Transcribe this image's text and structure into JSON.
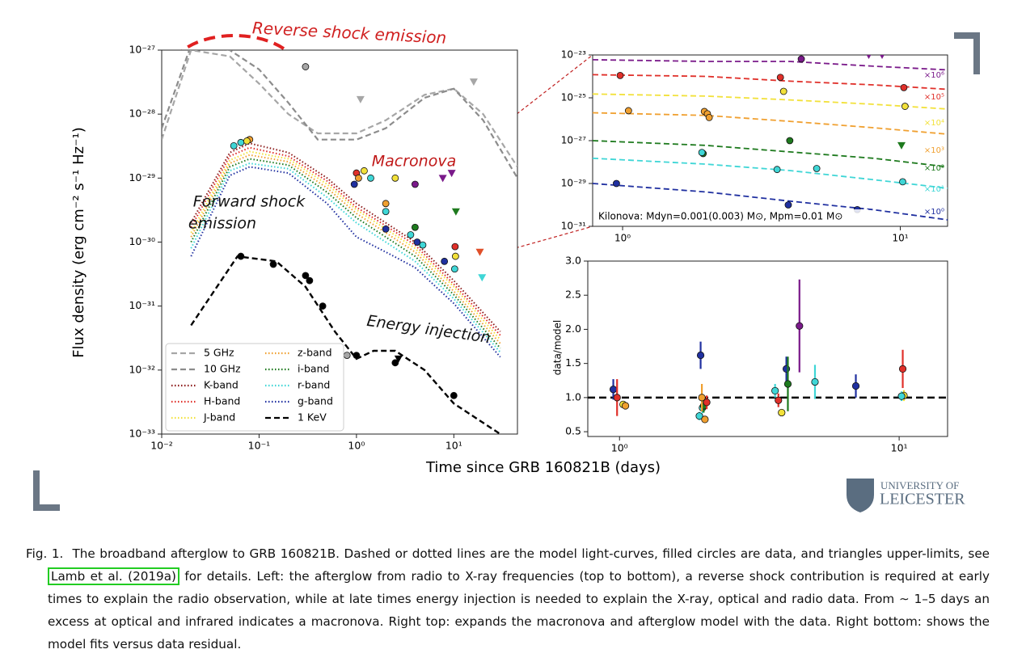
{
  "chart_data": [
    {
      "type": "line",
      "xscale": "log",
      "yscale": "log",
      "xlabel": "Time since GRB 160821B (days)",
      "ylabel": "Flux density (erg cm⁻² s⁻¹ Hz⁻¹)",
      "xlim": [
        0.01,
        45
      ],
      "ylim": [
        1e-33,
        1e-27
      ],
      "xticks": [
        {
          "value": 0.01,
          "label": "10⁻²"
        },
        {
          "value": 0.1,
          "label": "10⁻¹"
        },
        {
          "value": 1,
          "label": "10⁰"
        },
        {
          "value": 10,
          "label": "10¹"
        }
      ],
      "yticks": [
        {
          "value": 1e-33,
          "label": "10⁻³³"
        },
        {
          "value": 1e-32,
          "label": "10⁻³²"
        },
        {
          "value": 1e-31,
          "label": "10⁻³¹"
        },
        {
          "value": 1e-30,
          "label": "10⁻³⁰"
        },
        {
          "value": 1e-29,
          "label": "10⁻²⁹"
        },
        {
          "value": 1e-28,
          "label": "10⁻²⁸"
        },
        {
          "value": 1e-27,
          "label": "10⁻²⁷"
        }
      ],
      "legend": "lower left",
      "series": [
        {
          "name": "5 GHz",
          "color": "#a6a6a6",
          "style": "dashed",
          "x": [
            0.01,
            0.02,
            0.05,
            0.1,
            0.2,
            0.4,
            1,
            2,
            5,
            10,
            20,
            45
          ],
          "values": [
            4e-29,
            1e-27,
            8e-28,
            3e-28,
            1e-28,
            5e-29,
            5e-29,
            8e-29,
            2e-28,
            2.5e-28,
            1e-28,
            1.5e-29
          ]
        },
        {
          "name": "10 GHz",
          "color": "#8c8c8c",
          "style": "dashed",
          "x": [
            0.01,
            0.02,
            0.05,
            0.1,
            0.2,
            0.4,
            1,
            2,
            5,
            10,
            20,
            45
          ],
          "values": [
            6e-29,
            1.2e-27,
            1e-27,
            5e-28,
            1.5e-28,
            4e-29,
            4e-29,
            6e-29,
            1.8e-28,
            2.5e-28,
            8e-29,
            1e-29
          ]
        },
        {
          "name": "K-band",
          "color": "#8b1a1a",
          "style": "dotted",
          "x": [
            0.02,
            0.05,
            0.08,
            0.2,
            0.5,
            1,
            2,
            4,
            10,
            30
          ],
          "values": [
            2e-30,
            2.5e-29,
            3.5e-29,
            2.5e-29,
            1e-29,
            4e-30,
            2e-30,
            1e-30,
            2.5e-31,
            4e-32
          ]
        },
        {
          "name": "H-band",
          "color": "#e0302a",
          "style": "dotted",
          "x": [
            0.02,
            0.05,
            0.08,
            0.2,
            0.5,
            1,
            2,
            4,
            10,
            30
          ],
          "values": [
            1.7e-30,
            2.2e-29,
            3e-29,
            2.2e-29,
            9e-30,
            3.5e-30,
            1.8e-30,
            9e-31,
            2.2e-31,
            3.5e-32
          ]
        },
        {
          "name": "J-band",
          "color": "#f2e13a",
          "style": "dotted",
          "x": [
            0.02,
            0.05,
            0.08,
            0.2,
            0.5,
            1,
            2,
            4,
            10,
            30
          ],
          "values": [
            1.4e-30,
            1.9e-29,
            2.6e-29,
            2e-29,
            8e-30,
            3.2e-30,
            1.6e-30,
            8e-31,
            2e-31,
            3e-32
          ]
        },
        {
          "name": "z-band",
          "color": "#f0a030",
          "style": "dotted",
          "x": [
            0.02,
            0.05,
            0.08,
            0.2,
            0.5,
            1,
            2,
            4,
            10,
            30
          ],
          "values": [
            1.2e-30,
            1.7e-29,
            2.3e-29,
            1.8e-29,
            7e-30,
            2.8e-30,
            1.4e-30,
            7e-31,
            1.7e-31,
            2.6e-32
          ]
        },
        {
          "name": "i-band",
          "color": "#1e7a1e",
          "style": "dotted",
          "x": [
            0.02,
            0.05,
            0.08,
            0.2,
            0.5,
            1,
            2,
            4,
            10,
            30
          ],
          "values": [
            1e-30,
            1.5e-29,
            2e-29,
            1.6e-29,
            6e-30,
            2.4e-30,
            1.2e-30,
            6e-31,
            1.5e-31,
            2.2e-32
          ]
        },
        {
          "name": "r-band",
          "color": "#3fd6d6",
          "style": "dotted",
          "x": [
            0.02,
            0.05,
            0.08,
            0.2,
            0.5,
            1,
            2,
            4,
            10,
            30
          ],
          "values": [
            8e-31,
            1.3e-29,
            1.7e-29,
            1.4e-29,
            5e-30,
            2e-30,
            1e-30,
            5e-31,
            1.3e-31,
            1.9e-32
          ]
        },
        {
          "name": "g-band",
          "color": "#2030a0",
          "style": "dotted",
          "x": [
            0.02,
            0.05,
            0.08,
            0.2,
            0.5,
            1,
            2,
            4,
            10,
            30
          ],
          "values": [
            6e-31,
            1.1e-29,
            1.5e-29,
            1.2e-29,
            4e-30,
            1.2e-30,
            7e-31,
            4e-31,
            1.1e-31,
            1.6e-32
          ]
        },
        {
          "name": "1 KeV",
          "color": "#000000",
          "style": "dashed",
          "x": [
            0.02,
            0.06,
            0.15,
            0.3,
            0.6,
            1,
            1.5,
            2.5,
            5,
            10,
            30
          ],
          "values": [
            5e-32,
            6e-31,
            5e-31,
            2e-31,
            4e-32,
            1.5e-32,
            2e-32,
            2e-32,
            1e-32,
            3e-33,
            1e-33
          ]
        }
      ],
      "points": {
        "x": [
          0.055,
          0.065,
          0.08,
          0.075,
          1.0,
          1.05,
          0.95,
          1.2,
          1.4,
          2,
          2,
          2,
          2.5,
          4,
          4,
          3.6,
          4.2,
          4.8,
          8,
          10.3,
          10.4,
          10.2,
          0.065,
          0.14,
          0.3,
          0.33,
          0.45,
          1.0,
          2.5,
          10,
          0.3,
          0.8
        ],
        "values": [
          3.2e-29,
          3.6e-29,
          4e-29,
          3.8e-29,
          1.2e-29,
          1e-29,
          8e-30,
          1.3e-29,
          1e-29,
          4e-30,
          1.6e-30,
          3e-30,
          1e-29,
          8e-30,
          1.7e-30,
          1.3e-30,
          1e-30,
          9e-31,
          5e-31,
          8.5e-31,
          6e-31,
          3.8e-31,
          6e-31,
          4.5e-31,
          3e-31,
          2.5e-31,
          1e-31,
          1.7e-32,
          1.3e-32,
          4e-33,
          5.5e-28,
          1.7e-32
        ],
        "colors": [
          "#3fd6d6",
          "#3fd6d6",
          "#f0a030",
          "#f2e13a",
          "#e0302a",
          "#f0a030",
          "#2030a0",
          "#f2e13a",
          "#3fd6d6",
          "#f0a030",
          "#2030a0",
          "#3fd6d6",
          "#f2e13a",
          "#7a1a8a",
          "#1e7a1e",
          "#3fd6d6",
          "#2030a0",
          "#3fd6d6",
          "#2030a0",
          "#e0302a",
          "#f2e13a",
          "#3fd6d6",
          "#000000",
          "#000000",
          "#000000",
          "#000000",
          "#000000",
          "#000000",
          "#000000",
          "#000000",
          "#a6a6a6",
          "#a6a6a6"
        ]
      },
      "upper_limits": {
        "x": [
          1.1,
          16,
          7.7,
          9.5,
          10.5,
          18.5,
          19.5,
          2.7
        ],
        "values": [
          1.7e-28,
          3.2e-28,
          1e-29,
          1.2e-29,
          3e-30,
          7e-31,
          2.8e-31,
          1.5e-32
        ],
        "colors": [
          "#a6a6a6",
          "#a6a6a6",
          "#7a1a8a",
          "#7a1a8a",
          "#1e7a1e",
          "#e0502a",
          "#3fd6d6",
          "#000000"
        ]
      },
      "annotations": [
        "Reverse shock emission",
        "Forward shock",
        "emission",
        "Macronova",
        "Energy injection"
      ]
    },
    {
      "type": "line",
      "xscale": "log",
      "yscale": "log",
      "xlim": [
        0.78,
        14.8
      ],
      "ylim": [
        1e-31,
        1e-23
      ],
      "xticks": [
        {
          "value": 1,
          "label": "10⁰"
        },
        {
          "value": 10,
          "label": "10¹"
        }
      ],
      "yticks": [
        {
          "value": 1e-31,
          "label": "10⁻³¹"
        },
        {
          "value": 1e-29,
          "label": "10⁻²⁹"
        },
        {
          "value": 1e-27,
          "label": "10⁻²⁷"
        },
        {
          "value": 1e-25,
          "label": "10⁻²⁵"
        },
        {
          "value": 1e-23,
          "label": "10⁻²³"
        }
      ],
      "series": [
        {
          "color": "#7a1a8a",
          "x": [
            0.78,
            2,
            4,
            8,
            14.8
          ],
          "values": [
            6e-24,
            5e-24,
            5e-24,
            3e-24,
            2e-24
          ]
        },
        {
          "color": "#e0302a",
          "x": [
            0.78,
            2,
            4,
            8,
            14.8
          ],
          "values": [
            1.2e-24,
            1e-24,
            6e-25,
            4e-25,
            2.5e-25
          ]
        },
        {
          "color": "#f2e13a",
          "x": [
            0.78,
            2,
            4,
            8,
            14.8
          ],
          "values": [
            1.5e-25,
            1.2e-25,
            8e-26,
            5e-26,
            3e-26
          ]
        },
        {
          "color": "#f0a030",
          "x": [
            0.78,
            2,
            4,
            8,
            14.8
          ],
          "values": [
            2e-26,
            1.5e-26,
            8e-27,
            4e-27,
            2e-27
          ]
        },
        {
          "color": "#1e7a1e",
          "x": [
            0.78,
            2,
            4,
            8,
            14.8
          ],
          "values": [
            1e-27,
            6e-28,
            3e-28,
            1.5e-28,
            6e-29
          ]
        },
        {
          "color": "#3fd6d6",
          "x": [
            0.78,
            2,
            4,
            8,
            14.8
          ],
          "values": [
            1.5e-28,
            8e-29,
            4e-29,
            1.5e-29,
            6e-30
          ]
        },
        {
          "color": "#2030a0",
          "x": [
            0.78,
            2,
            4,
            8,
            14.8
          ],
          "values": [
            1e-29,
            4e-30,
            1.5e-30,
            6e-31,
            2e-31
          ]
        }
      ],
      "points": {
        "x": [
          4.4,
          0.98,
          3.7,
          10.3,
          3.8,
          10.4,
          1.05,
          1.97,
          2.02,
          2.05,
          4.0,
          1.95,
          5.0,
          3.6,
          10.2,
          0.95,
          1.93,
          3.95,
          7.0
        ],
        "values": [
          6.5e-24,
          1.1e-24,
          9e-25,
          3e-25,
          2e-25,
          4e-26,
          2.5e-26,
          2.3e-26,
          1.8e-26,
          1.2e-26,
          1e-27,
          2.5e-28,
          5e-29,
          4.5e-29,
          1.2e-29,
          1e-29,
          2.8e-28,
          1e-30,
          6e-31
        ],
        "colors": [
          "#7a1a8a",
          "#e0302a",
          "#e0302a",
          "#e0302a",
          "#f2e13a",
          "#f2e13a",
          "#f0a030",
          "#f0a030",
          "#f0a030",
          "#f0a030",
          "#1e7a1e",
          "#1e7a1e",
          "#3fd6d6",
          "#3fd6d6",
          "#3fd6d6",
          "#2030a0",
          "#3fd6d6",
          "#2030a0",
          "#2030a0"
        ]
      },
      "upper_limits": {
        "x": [
          7.7,
          8.6,
          10.1
        ],
        "values": [
          1e-23,
          1e-23,
          6e-28
        ],
        "colors": [
          "#7a1a8a",
          "#7a1a8a",
          "#1e7a1e"
        ]
      },
      "annotations": [
        "×10⁶",
        "×10⁵",
        "×10⁴",
        "×10³",
        "×10²",
        "×10¹",
        "×10⁰"
      ],
      "note": "Kilonova: Mdyn=0.001(0.003) M⊙, Mpm=0.01 M⊙"
    },
    {
      "type": "errorbar",
      "xscale": "log",
      "ylabel": "data/model",
      "xlim": [
        0.77,
        14.9
      ],
      "ylim": [
        0.43,
        3.0
      ],
      "xticks": [
        {
          "value": 1,
          "label": "10⁰"
        },
        {
          "value": 10,
          "label": "10¹"
        }
      ],
      "yticks": [
        0.5,
        {
          "value": 1,
          "label": "1.0"
        },
        1.5,
        {
          "value": 2,
          "label": "2.0"
        },
        2.5,
        {
          "value": 3,
          "label": "3.0"
        }
      ],
      "reference_line": 1,
      "x": [
        0.95,
        0.98,
        1.03,
        1.05,
        1.95,
        1.93,
        1.98,
        2.0,
        1.97,
        2.02,
        2.05,
        3.6,
        3.7,
        3.8,
        3.95,
        4.0,
        4.4,
        5.0,
        7.0,
        10.3,
        10.4,
        10.2
      ],
      "values": [
        1.12,
        1.0,
        0.9,
        0.88,
        1.62,
        0.73,
        0.85,
        0.88,
        1.0,
        0.68,
        0.93,
        1.1,
        0.96,
        0.78,
        1.42,
        1.2,
        2.05,
        1.23,
        1.17,
        1.42,
        1.03,
        1.02
      ],
      "errors": [
        0.15,
        0.27,
        0.05,
        0.04,
        0.2,
        0.06,
        0.08,
        0.1,
        0.2,
        0.05,
        0.1,
        0.1,
        0.1,
        0.04,
        0.18,
        0.4,
        0.68,
        0.25,
        0.17,
        0.28,
        0.08,
        0.07
      ],
      "colors": [
        "#2030a0",
        "#e0302a",
        "#f2e13a",
        "#f0a030",
        "#2030a0",
        "#3fd6d6",
        "#3fd6d6",
        "#1e7a1e",
        "#f0a030",
        "#f0a030",
        "#e0302a",
        "#3fd6d6",
        "#e0302a",
        "#f2e13a",
        "#2030a0",
        "#1e7a1e",
        "#7a1a8a",
        "#3fd6d6",
        "#2030a0",
        "#e0302a",
        "#f2e13a",
        "#3fd6d6"
      ]
    }
  ],
  "logo": {
    "line1": "UNIVERSITY OF",
    "line2": "LEICESTER"
  },
  "caption": {
    "label": "Fig. 1.",
    "before": "The broadband afterglow to GRB 160821B. Dashed or dotted lines are the model light-curves, filled circles are data, and triangles upper-limits, see",
    "link": "Lamb et al. (2019a)",
    "after": "for details. Left: the afterglow from radio to X-ray frequencies (top to bottom), a reverse shock contribution is required at early times to explain the radio observation, while at late times energy injection is needed to explain the X-ray, optical and radio data. From ∼ 1–5 days an excess at optical and infrared indicates a macronova. Right top: expands the macronova and afterglow model with the data. Right bottom: shows the model fits versus data residual."
  }
}
